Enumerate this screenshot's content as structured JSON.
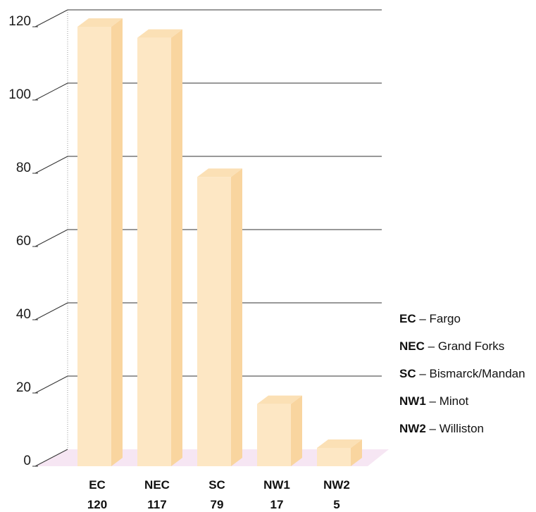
{
  "chart_data": {
    "type": "bar",
    "categories": [
      "EC",
      "NEC",
      "SC",
      "NW1",
      "NW2"
    ],
    "values": [
      120,
      117,
      79,
      17,
      5
    ],
    "value_labels": [
      "120",
      "117",
      "79",
      "17",
      "5"
    ],
    "yticks": [
      "0",
      "20",
      "40",
      "60",
      "80",
      "100",
      "120"
    ],
    "ylim": [
      0,
      120
    ],
    "grid": true,
    "legend_placement": "right",
    "title": "",
    "xlabel": "",
    "ylabel": ""
  },
  "legend": [
    {
      "code": "EC",
      "sep": " – ",
      "label": "Fargo"
    },
    {
      "code": "NEC",
      "sep": " – ",
      "label": "Grand Forks"
    },
    {
      "code": "SC",
      "sep": " – ",
      "label": "Bismarck/Mandan"
    },
    {
      "code": "NW1",
      "sep": " – ",
      "label": "Minot"
    },
    {
      "code": "NW2",
      "sep": " – ",
      "label": "Williston"
    }
  ],
  "colors": {
    "bar_front": "#fde7c4",
    "bar_side": "#f9d59f",
    "bar_top": "#fbe0b5",
    "floor": "#f6e6f3",
    "grid": "#333333"
  }
}
